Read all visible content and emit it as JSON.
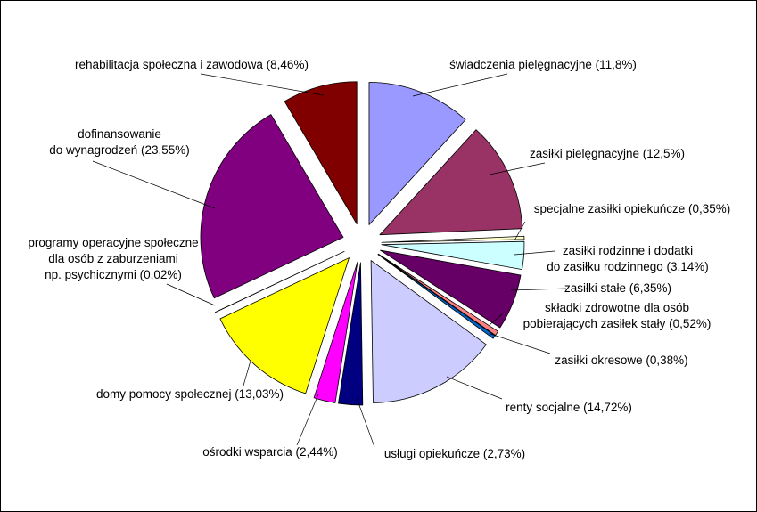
{
  "chart_data": {
    "type": "pie",
    "title": "",
    "exploded": true,
    "slices": [
      {
        "label_lines": [
          "świadczenia pielęgnacyjne (11,8%)"
        ],
        "value": 11.8,
        "color": "#9999ff"
      },
      {
        "label_lines": [
          "zasiłki pielęgnacyjne (12,5%)"
        ],
        "value": 12.5,
        "color": "#993366"
      },
      {
        "label_lines": [
          "specjalne zasiłki opiekuńcze (0,35%)"
        ],
        "value": 0.35,
        "color": "#ffffcc"
      },
      {
        "label_lines": [
          "zasiłki rodzinne i dodatki",
          "do zasiłku rodzinnego (3,14%)"
        ],
        "value": 3.14,
        "color": "#ccffff"
      },
      {
        "label_lines": [
          "zasiłki stałe (6,35%)"
        ],
        "value": 6.35,
        "color": "#660066"
      },
      {
        "label_lines": [
          "składki zdrowotne dla osób",
          "pobierających zasiłek stały (0,52%)"
        ],
        "value": 0.52,
        "color": "#ff8080"
      },
      {
        "label_lines": [
          "zasiłki okresowe (0,38%)"
        ],
        "value": 0.38,
        "color": "#0066cc"
      },
      {
        "label_lines": [
          "renty socjalne (14,72%)"
        ],
        "value": 14.72,
        "color": "#ccccff"
      },
      {
        "label_lines": [
          "usługi opiekuńcze (2,73%)"
        ],
        "value": 2.73,
        "color": "#000080"
      },
      {
        "label_lines": [
          "ośrodki wsparcia (2,44%)"
        ],
        "value": 2.44,
        "color": "#ff00ff"
      },
      {
        "label_lines": [
          "domy pomocy społecznej (13,03%)"
        ],
        "value": 13.03,
        "color": "#ffff00"
      },
      {
        "label_lines": [
          "programy operacyjne społeczne",
          "dla osób z zaburzeniami",
          "np. psychicznymi (0,02%)"
        ],
        "value": 0.02,
        "color": "#00ffff"
      },
      {
        "label_lines": [
          "dofinansowanie",
          "do wynagrodzeń (23,55%)"
        ],
        "value": 23.55,
        "color": "#800080"
      },
      {
        "label_lines": [
          "rehabilitacja społeczna i zawodowa (8,46%)"
        ],
        "value": 8.46,
        "color": "#800000"
      }
    ]
  }
}
